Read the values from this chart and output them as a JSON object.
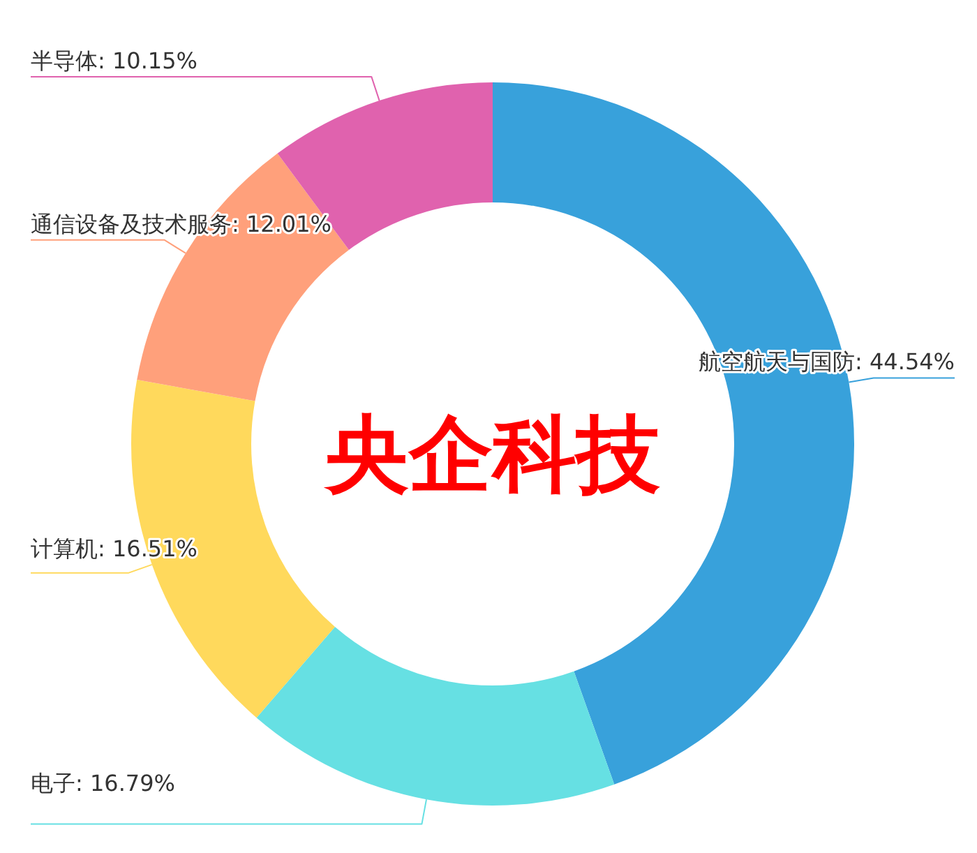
{
  "chart_data": {
    "type": "donut",
    "title": "央企科技",
    "categories": [
      "航空航天与国防",
      "电子",
      "计算机",
      "通信设备及技术服务",
      "半导体"
    ],
    "values": [
      44.54,
      16.79,
      16.51,
      12.01,
      10.15
    ],
    "value_labels": [
      "44.54%",
      "16.79%",
      "16.51%",
      "12.01%",
      "10.15%"
    ],
    "colors": [
      "#38a1db",
      "#66e0e3",
      "#ffd95c",
      "#ffa07b",
      "#e062ae"
    ]
  }
}
